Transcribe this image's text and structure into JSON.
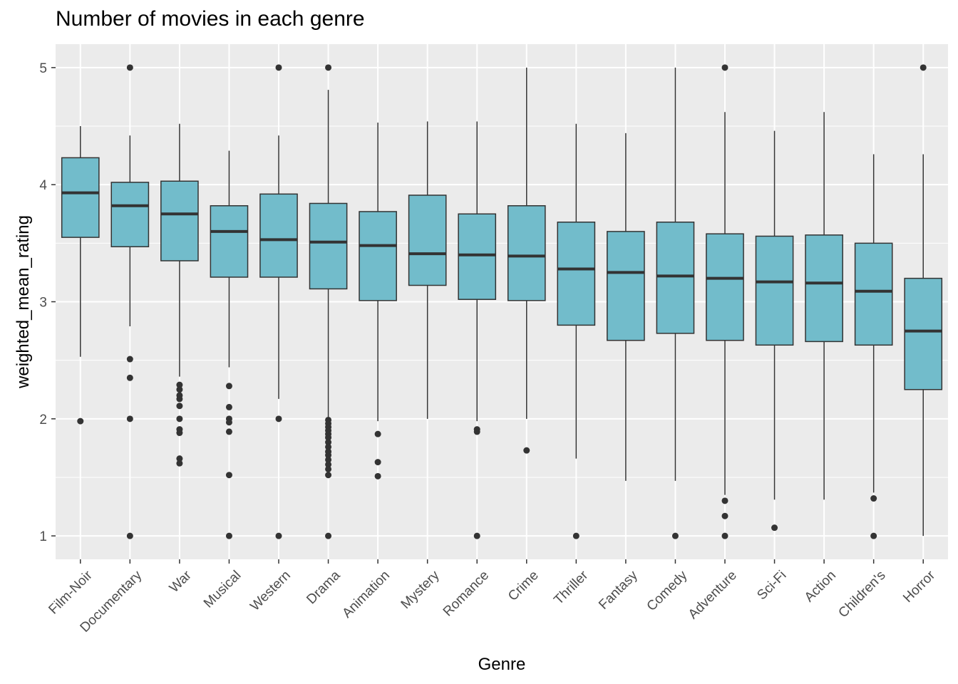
{
  "chart_data": {
    "type": "boxplot",
    "title": "Number of movies in each genre",
    "xlabel": "Genre",
    "ylabel": "weighted_mean_rating",
    "ylim": [
      0.8,
      5.2
    ],
    "yticks": [
      1,
      2,
      3,
      4,
      5
    ],
    "grid": true,
    "colors": {
      "panel": "#ebebeb",
      "grid_major": "#ffffff",
      "box_fill": "#72bccb",
      "box_line": "#333333",
      "outlier": "#333333",
      "tick_text": "#4d4d4d"
    },
    "categories": [
      "Film-Noir",
      "Documentary",
      "War",
      "Musical",
      "Western",
      "Drama",
      "Animation",
      "Mystery",
      "Romance",
      "Crime",
      "Thriller",
      "Fantasy",
      "Comedy",
      "Adventure",
      "Sci-Fi",
      "Action",
      "Children's",
      "Horror"
    ],
    "boxes": [
      {
        "category": "Film-Noir",
        "whisker_low": 2.53,
        "q1": 3.55,
        "median": 3.93,
        "q3": 4.23,
        "whisker_high": 4.5,
        "outliers": [
          1.98
        ]
      },
      {
        "category": "Documentary",
        "whisker_low": 2.79,
        "q1": 3.47,
        "median": 3.82,
        "q3": 4.02,
        "whisker_high": 4.42,
        "outliers": [
          5.0,
          2.51,
          2.35,
          2.0,
          1.0
        ]
      },
      {
        "category": "War",
        "whisker_low": 2.36,
        "q1": 3.35,
        "median": 3.75,
        "q3": 4.03,
        "whisker_high": 4.52,
        "outliers": [
          2.29,
          2.25,
          2.2,
          2.17,
          2.11,
          2.0,
          1.91,
          1.88,
          1.66,
          1.62
        ]
      },
      {
        "category": "Musical",
        "whisker_low": 2.44,
        "q1": 3.21,
        "median": 3.6,
        "q3": 3.82,
        "whisker_high": 4.29,
        "outliers": [
          2.28,
          2.1,
          2.0,
          1.97,
          1.89,
          1.52,
          1.0
        ]
      },
      {
        "category": "Western",
        "whisker_low": 2.17,
        "q1": 3.21,
        "median": 3.53,
        "q3": 3.92,
        "whisker_high": 4.42,
        "outliers": [
          5.0,
          2.0,
          1.0
        ]
      },
      {
        "category": "Drama",
        "whisker_low": 2.0,
        "q1": 3.11,
        "median": 3.51,
        "q3": 3.84,
        "whisker_high": 4.81,
        "outliers": [
          5.0,
          1.99,
          1.96,
          1.93,
          1.9,
          1.87,
          1.84,
          1.8,
          1.76,
          1.72,
          1.69,
          1.65,
          1.61,
          1.57,
          1.52,
          1.0
        ]
      },
      {
        "category": "Animation",
        "whisker_low": 1.98,
        "q1": 3.01,
        "median": 3.48,
        "q3": 3.77,
        "whisker_high": 4.53,
        "outliers": [
          1.87,
          1.63,
          1.51
        ]
      },
      {
        "category": "Mystery",
        "whisker_low": 2.0,
        "q1": 3.14,
        "median": 3.41,
        "q3": 3.91,
        "whisker_high": 4.54,
        "outliers": []
      },
      {
        "category": "Romance",
        "whisker_low": 1.98,
        "q1": 3.02,
        "median": 3.4,
        "q3": 3.75,
        "whisker_high": 4.54,
        "outliers": [
          1.91,
          1.89,
          1.0
        ]
      },
      {
        "category": "Crime",
        "whisker_low": 2.0,
        "q1": 3.01,
        "median": 3.39,
        "q3": 3.82,
        "whisker_high": 5.0,
        "outliers": [
          1.73
        ]
      },
      {
        "category": "Thriller",
        "whisker_low": 1.66,
        "q1": 2.8,
        "median": 3.28,
        "q3": 3.68,
        "whisker_high": 4.52,
        "outliers": [
          1.0
        ]
      },
      {
        "category": "Fantasy",
        "whisker_low": 1.47,
        "q1": 2.67,
        "median": 3.25,
        "q3": 3.6,
        "whisker_high": 4.44,
        "outliers": []
      },
      {
        "category": "Comedy",
        "whisker_low": 1.47,
        "q1": 2.73,
        "median": 3.22,
        "q3": 3.68,
        "whisker_high": 5.0,
        "outliers": [
          1.0
        ]
      },
      {
        "category": "Adventure",
        "whisker_low": 1.35,
        "q1": 2.67,
        "median": 3.2,
        "q3": 3.58,
        "whisker_high": 4.62,
        "outliers": [
          5.0,
          1.3,
          1.17,
          1.0
        ]
      },
      {
        "category": "Sci-Fi",
        "whisker_low": 1.31,
        "q1": 2.63,
        "median": 3.17,
        "q3": 3.56,
        "whisker_high": 4.46,
        "outliers": [
          1.07
        ]
      },
      {
        "category": "Action",
        "whisker_low": 1.31,
        "q1": 2.66,
        "median": 3.16,
        "q3": 3.57,
        "whisker_high": 4.62,
        "outliers": []
      },
      {
        "category": "Children's",
        "whisker_low": 1.37,
        "q1": 2.63,
        "median": 3.09,
        "q3": 3.5,
        "whisker_high": 4.26,
        "outliers": [
          1.32,
          1.0
        ]
      },
      {
        "category": "Horror",
        "whisker_low": 1.0,
        "q1": 2.25,
        "median": 2.75,
        "q3": 3.2,
        "whisker_high": 4.26,
        "outliers": [
          5.0
        ]
      }
    ]
  }
}
